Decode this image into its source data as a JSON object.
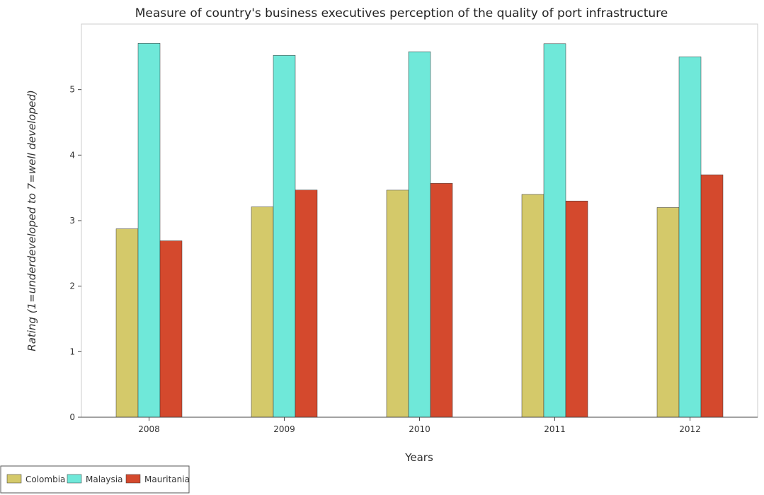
{
  "chart_data": {
    "type": "bar",
    "title": "Measure of country's business executives perception of the quality of port infrastructure",
    "xlabel": "Years",
    "ylabel": "Rating (1=underdeveloped to 7=well developed)",
    "categories": [
      "2008",
      "2009",
      "2010",
      "2011",
      "2012"
    ],
    "series": [
      {
        "name": "Colombia",
        "color": "#d4c96a",
        "values": [
          2.875,
          3.21,
          3.465,
          3.4,
          3.2
        ]
      },
      {
        "name": "Malaysia",
        "color": "#6fe8d9",
        "values": [
          5.706,
          5.522,
          5.578,
          5.7,
          5.5
        ]
      },
      {
        "name": "Mauritania",
        "color": "#d4492d",
        "values": [
          2.692,
          3.467,
          3.57,
          3.3,
          3.7
        ]
      }
    ],
    "ylim": [
      0,
      6
    ],
    "yticks": [
      "0",
      "1",
      "2",
      "3",
      "4",
      "5"
    ],
    "grid": false,
    "legend_position": "bottom-left"
  }
}
